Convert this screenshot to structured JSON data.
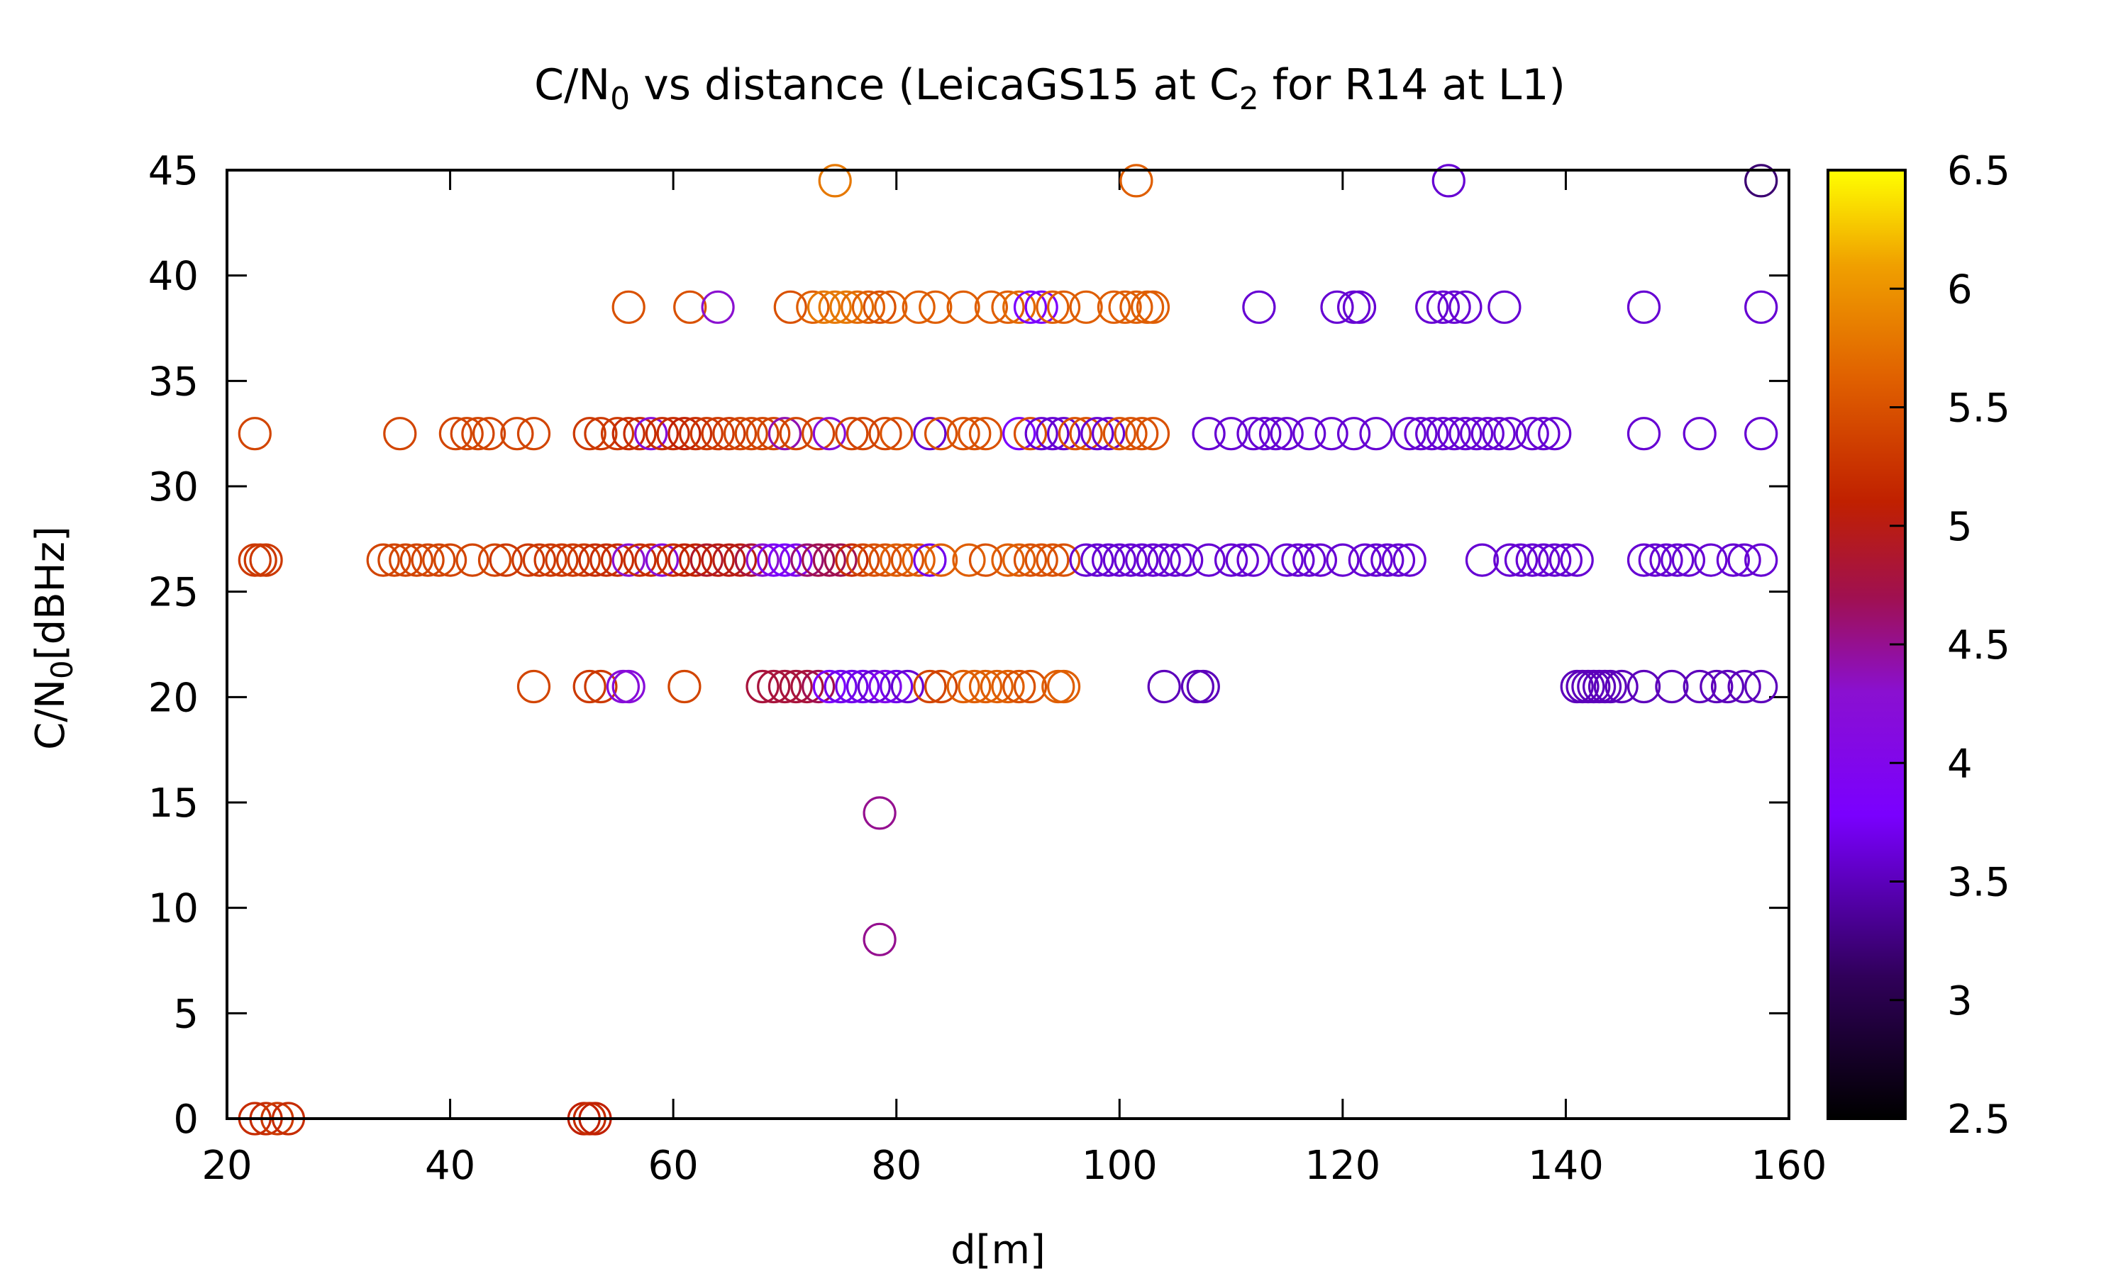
{
  "chart_data": {
    "type": "scatter",
    "title": {
      "main": "C/N",
      "sub1": "0",
      "mid": " vs distance (LeicaGS15 at C",
      "sub2": "2",
      "end": " for R14 at L1)"
    },
    "xlabel": "d[m]",
    "ylabel": {
      "main": "C/N",
      "sub": "0",
      "end": "[dBHz]"
    },
    "xlim": [
      20,
      160
    ],
    "ylim": [
      0,
      45
    ],
    "xticks": [
      "20",
      "40",
      "60",
      "80",
      "100",
      "120",
      "140",
      "160"
    ],
    "yticks": [
      "0",
      "5",
      "10",
      "15",
      "20",
      "25",
      "30",
      "35",
      "40",
      "45"
    ],
    "colorbar": {
      "range": [
        2.5,
        6.5
      ],
      "ticks": [
        "2.5",
        "3",
        "3.5",
        "4",
        "4.5",
        "5",
        "5.5",
        "6",
        "6.5"
      ],
      "palette": "black-purple-red-orange-yellow"
    },
    "grid": false,
    "marker": "open-circle",
    "points": [
      [
        22.5,
        0,
        5.2
      ],
      [
        23.5,
        0,
        5.2
      ],
      [
        24.5,
        0,
        5.3
      ],
      [
        25.5,
        0,
        5.2
      ],
      [
        52,
        0,
        5.1
      ],
      [
        52.5,
        0,
        5.2
      ],
      [
        53,
        0,
        5.1
      ],
      [
        78.5,
        8.5,
        4.5
      ],
      [
        78.5,
        14.5,
        4.5
      ],
      [
        47.5,
        20.5,
        5.4
      ],
      [
        52.5,
        20.5,
        5.3
      ],
      [
        53.5,
        20.5,
        5.3
      ],
      [
        55.5,
        20.5,
        4.2
      ],
      [
        56,
        20.5,
        4.2
      ],
      [
        61,
        20.5,
        5.4
      ],
      [
        68,
        20.5,
        4.8
      ],
      [
        69,
        20.5,
        4.8
      ],
      [
        70,
        20.5,
        4.8
      ],
      [
        71,
        20.5,
        4.8
      ],
      [
        72,
        20.5,
        4.8
      ],
      [
        73,
        20.5,
        4.7
      ],
      [
        74,
        20.5,
        3.8
      ],
      [
        75,
        20.5,
        3.7
      ],
      [
        76,
        20.5,
        3.7
      ],
      [
        77,
        20.5,
        3.7
      ],
      [
        78,
        20.5,
        3.6
      ],
      [
        79,
        20.5,
        4.0
      ],
      [
        80,
        20.5,
        3.7
      ],
      [
        81,
        20.5,
        3.6
      ],
      [
        83,
        20.5,
        5.4
      ],
      [
        84,
        20.5,
        5.4
      ],
      [
        86,
        20.5,
        5.6
      ],
      [
        87,
        20.5,
        5.6
      ],
      [
        88,
        20.5,
        5.6
      ],
      [
        89,
        20.5,
        5.6
      ],
      [
        90,
        20.5,
        5.6
      ],
      [
        91,
        20.5,
        5.5
      ],
      [
        92,
        20.5,
        5.5
      ],
      [
        94.5,
        20.5,
        5.6
      ],
      [
        95,
        20.5,
        5.6
      ],
      [
        104,
        20.5,
        3.5
      ],
      [
        107,
        20.5,
        3.5
      ],
      [
        107.5,
        20.5,
        3.5
      ],
      [
        141,
        20.5,
        3.5
      ],
      [
        141.5,
        20.5,
        3.5
      ],
      [
        142,
        20.5,
        3.5
      ],
      [
        142.5,
        20.5,
        3.5
      ],
      [
        143,
        20.5,
        3.5
      ],
      [
        143.5,
        20.5,
        3.5
      ],
      [
        144,
        20.5,
        3.5
      ],
      [
        145,
        20.5,
        3.5
      ],
      [
        147,
        20.5,
        3.5
      ],
      [
        149.5,
        20.5,
        3.5
      ],
      [
        152,
        20.5,
        3.5
      ],
      [
        153.5,
        20.5,
        3.5
      ],
      [
        154.5,
        20.5,
        3.5
      ],
      [
        156,
        20.5,
        3.5
      ],
      [
        157.5,
        20.5,
        3.5
      ],
      [
        22.5,
        26.5,
        5.3
      ],
      [
        23,
        26.5,
        5.3
      ],
      [
        23.5,
        26.5,
        5.3
      ],
      [
        34,
        26.5,
        5.4
      ],
      [
        35,
        26.5,
        5.4
      ],
      [
        36,
        26.5,
        5.4
      ],
      [
        37,
        26.5,
        5.4
      ],
      [
        38,
        26.5,
        5.4
      ],
      [
        39,
        26.5,
        5.4
      ],
      [
        40,
        26.5,
        5.4
      ],
      [
        42,
        26.5,
        5.4
      ],
      [
        44,
        26.5,
        5.4
      ],
      [
        45,
        26.5,
        5.3
      ],
      [
        47,
        26.5,
        5.3
      ],
      [
        48,
        26.5,
        5.3
      ],
      [
        49,
        26.5,
        5.3
      ],
      [
        50,
        26.5,
        5.3
      ],
      [
        51,
        26.5,
        5.3
      ],
      [
        52,
        26.5,
        5.3
      ],
      [
        53,
        26.5,
        5.2
      ],
      [
        54,
        26.5,
        5.2
      ],
      [
        55,
        26.5,
        5.2
      ],
      [
        56,
        26.5,
        4.3
      ],
      [
        57,
        26.5,
        5.2
      ],
      [
        58,
        26.5,
        5.2
      ],
      [
        59,
        26.5,
        4.2
      ],
      [
        60,
        26.5,
        5.2
      ],
      [
        61,
        26.5,
        5.1
      ],
      [
        62,
        26.5,
        5.1
      ],
      [
        63,
        26.5,
        4.9
      ],
      [
        64,
        26.5,
        5.0
      ],
      [
        65,
        26.5,
        5.0
      ],
      [
        66,
        26.5,
        5.0
      ],
      [
        67,
        26.5,
        4.8
      ],
      [
        68,
        26.5,
        4.3
      ],
      [
        69,
        26.5,
        3.9
      ],
      [
        70,
        26.5,
        3.8
      ],
      [
        71,
        26.5,
        4.0
      ],
      [
        72,
        26.5,
        4.6
      ],
      [
        73,
        26.5,
        4.7
      ],
      [
        74,
        26.5,
        4.7
      ],
      [
        75,
        26.5,
        4.7
      ],
      [
        76,
        26.5,
        5.2
      ],
      [
        77,
        26.5,
        5.4
      ],
      [
        78,
        26.5,
        5.5
      ],
      [
        79,
        26.5,
        5.5
      ],
      [
        80,
        26.5,
        5.6
      ],
      [
        81,
        26.5,
        5.5
      ],
      [
        82,
        26.5,
        5.6
      ],
      [
        83,
        26.5,
        3.7
      ],
      [
        84,
        26.5,
        5.6
      ],
      [
        86.5,
        26.5,
        5.6
      ],
      [
        88,
        26.5,
        5.5
      ],
      [
        90,
        26.5,
        5.6
      ],
      [
        91,
        26.5,
        5.6
      ],
      [
        92,
        26.5,
        5.5
      ],
      [
        93,
        26.5,
        5.5
      ],
      [
        94,
        26.5,
        5.5
      ],
      [
        95,
        26.5,
        5.5
      ],
      [
        97,
        26.5,
        3.6
      ],
      [
        98,
        26.5,
        3.6
      ],
      [
        99,
        26.5,
        3.6
      ],
      [
        100,
        26.5,
        3.6
      ],
      [
        101,
        26.5,
        3.6
      ],
      [
        102,
        26.5,
        3.6
      ],
      [
        103,
        26.5,
        3.6
      ],
      [
        104,
        26.5,
        3.6
      ],
      [
        105,
        26.5,
        3.6
      ],
      [
        106,
        26.5,
        3.6
      ],
      [
        108,
        26.5,
        3.6
      ],
      [
        110,
        26.5,
        3.6
      ],
      [
        111,
        26.5,
        3.6
      ],
      [
        112,
        26.5,
        3.6
      ],
      [
        115,
        26.5,
        3.6
      ],
      [
        116,
        26.5,
        3.6
      ],
      [
        117,
        26.5,
        3.6
      ],
      [
        118,
        26.5,
        3.6
      ],
      [
        120,
        26.5,
        3.6
      ],
      [
        122,
        26.5,
        3.6
      ],
      [
        123,
        26.5,
        3.6
      ],
      [
        124,
        26.5,
        3.6
      ],
      [
        125,
        26.5,
        3.6
      ],
      [
        126,
        26.5,
        3.6
      ],
      [
        132.5,
        26.5,
        3.6
      ],
      [
        135,
        26.5,
        3.6
      ],
      [
        136,
        26.5,
        3.6
      ],
      [
        137,
        26.5,
        3.6
      ],
      [
        138,
        26.5,
        3.6
      ],
      [
        139,
        26.5,
        3.6
      ],
      [
        140,
        26.5,
        3.6
      ],
      [
        141,
        26.5,
        3.6
      ],
      [
        147,
        26.5,
        3.6
      ],
      [
        148,
        26.5,
        3.6
      ],
      [
        149,
        26.5,
        3.6
      ],
      [
        150,
        26.5,
        3.6
      ],
      [
        151,
        26.5,
        3.6
      ],
      [
        153,
        26.5,
        3.6
      ],
      [
        155,
        26.5,
        3.6
      ],
      [
        156,
        26.5,
        3.6
      ],
      [
        157.5,
        26.5,
        3.6
      ],
      [
        22.5,
        32.5,
        5.4
      ],
      [
        35.5,
        32.5,
        5.4
      ],
      [
        40.5,
        32.5,
        5.4
      ],
      [
        41.5,
        32.5,
        5.4
      ],
      [
        42.5,
        32.5,
        5.4
      ],
      [
        43.5,
        32.5,
        5.4
      ],
      [
        46,
        32.5,
        5.4
      ],
      [
        47.5,
        32.5,
        5.4
      ],
      [
        52.5,
        32.5,
        5.3
      ],
      [
        53.5,
        32.5,
        5.3
      ],
      [
        55,
        32.5,
        5.3
      ],
      [
        56,
        32.5,
        5.2
      ],
      [
        57,
        32.5,
        5.2
      ],
      [
        58,
        32.5,
        4.2
      ],
      [
        59,
        32.5,
        5.2
      ],
      [
        60,
        32.5,
        5.2
      ],
      [
        61,
        32.5,
        5.1
      ],
      [
        62,
        32.5,
        5.2
      ],
      [
        63,
        32.5,
        5.3
      ],
      [
        64,
        32.5,
        5.3
      ],
      [
        65,
        32.5,
        5.3
      ],
      [
        66,
        32.5,
        5.4
      ],
      [
        67,
        32.5,
        5.4
      ],
      [
        68,
        32.5,
        5.4
      ],
      [
        69,
        32.5,
        5.4
      ],
      [
        70,
        32.5,
        4.4
      ],
      [
        71,
        32.5,
        5.4
      ],
      [
        73,
        32.5,
        5.4
      ],
      [
        74,
        32.5,
        4.2
      ],
      [
        76,
        32.5,
        5.4
      ],
      [
        77,
        32.5,
        5.4
      ],
      [
        79,
        32.5,
        5.4
      ],
      [
        80,
        32.5,
        5.5
      ],
      [
        83,
        32.5,
        3.6
      ],
      [
        84,
        32.5,
        5.5
      ],
      [
        86,
        32.5,
        5.5
      ],
      [
        87,
        32.5,
        5.5
      ],
      [
        88,
        32.5,
        5.5
      ],
      [
        91,
        32.5,
        3.8
      ],
      [
        92,
        32.5,
        5.5
      ],
      [
        93,
        32.5,
        3.6
      ],
      [
        94,
        32.5,
        3.6
      ],
      [
        95,
        32.5,
        3.6
      ],
      [
        96,
        32.5,
        5.5
      ],
      [
        97,
        32.5,
        5.5
      ],
      [
        98,
        32.5,
        3.6
      ],
      [
        99,
        32.5,
        3.6
      ],
      [
        100,
        32.5,
        5.5
      ],
      [
        101,
        32.5,
        5.5
      ],
      [
        102,
        32.5,
        5.5
      ],
      [
        103,
        32.5,
        5.5
      ],
      [
        108,
        32.5,
        3.6
      ],
      [
        110,
        32.5,
        3.6
      ],
      [
        112,
        32.5,
        3.6
      ],
      [
        113,
        32.5,
        3.6
      ],
      [
        114,
        32.5,
        3.6
      ],
      [
        115,
        32.5,
        3.6
      ],
      [
        117,
        32.5,
        3.6
      ],
      [
        119,
        32.5,
        3.6
      ],
      [
        121,
        32.5,
        3.6
      ],
      [
        123,
        32.5,
        3.6
      ],
      [
        126,
        32.5,
        3.6
      ],
      [
        127,
        32.5,
        3.6
      ],
      [
        128,
        32.5,
        3.6
      ],
      [
        129,
        32.5,
        3.6
      ],
      [
        130,
        32.5,
        3.6
      ],
      [
        131,
        32.5,
        3.6
      ],
      [
        132,
        32.5,
        3.6
      ],
      [
        133,
        32.5,
        3.6
      ],
      [
        134,
        32.5,
        3.6
      ],
      [
        135,
        32.5,
        3.6
      ],
      [
        137,
        32.5,
        3.6
      ],
      [
        138,
        32.5,
        3.6
      ],
      [
        139,
        32.5,
        3.6
      ],
      [
        147,
        32.5,
        3.6
      ],
      [
        152,
        32.5,
        3.6
      ],
      [
        157.5,
        32.5,
        3.6
      ],
      [
        56,
        38.5,
        5.5
      ],
      [
        61.5,
        38.5,
        5.5
      ],
      [
        64,
        38.5,
        4.3
      ],
      [
        70.5,
        38.5,
        5.5
      ],
      [
        72.5,
        38.5,
        5.6
      ],
      [
        73.5,
        38.5,
        5.8
      ],
      [
        74.5,
        38.5,
        5.8
      ],
      [
        75.5,
        38.5,
        5.8
      ],
      [
        76.5,
        38.5,
        5.7
      ],
      [
        77.5,
        38.5,
        5.6
      ],
      [
        78.5,
        38.5,
        5.5
      ],
      [
        79.5,
        38.5,
        5.6
      ],
      [
        82,
        38.5,
        5.6
      ],
      [
        83.5,
        38.5,
        5.6
      ],
      [
        86,
        38.5,
        5.6
      ],
      [
        88.5,
        38.5,
        5.6
      ],
      [
        90,
        38.5,
        5.6
      ],
      [
        91,
        38.5,
        5.7
      ],
      [
        92,
        38.5,
        3.8
      ],
      [
        93,
        38.5,
        3.8
      ],
      [
        94,
        38.5,
        5.6
      ],
      [
        95,
        38.5,
        5.6
      ],
      [
        97,
        38.5,
        5.6
      ],
      [
        99.5,
        38.5,
        5.6
      ],
      [
        100.5,
        38.5,
        5.6
      ],
      [
        101.5,
        38.5,
        5.6
      ],
      [
        102.5,
        38.5,
        5.6
      ],
      [
        103,
        38.5,
        5.6
      ],
      [
        112.5,
        38.5,
        3.6
      ],
      [
        119.5,
        38.5,
        3.6
      ],
      [
        121,
        38.5,
        3.6
      ],
      [
        121.5,
        38.5,
        3.6
      ],
      [
        128,
        38.5,
        3.6
      ],
      [
        129,
        38.5,
        3.6
      ],
      [
        130,
        38.5,
        3.6
      ],
      [
        131,
        38.5,
        3.6
      ],
      [
        134.5,
        38.5,
        3.6
      ],
      [
        147,
        38.5,
        3.6
      ],
      [
        157.5,
        38.5,
        3.6
      ],
      [
        74.5,
        44.5,
        5.8
      ],
      [
        101.5,
        44.5,
        5.6
      ],
      [
        129.5,
        44.5,
        3.6
      ],
      [
        157.5,
        44.5,
        3.2
      ]
    ]
  }
}
